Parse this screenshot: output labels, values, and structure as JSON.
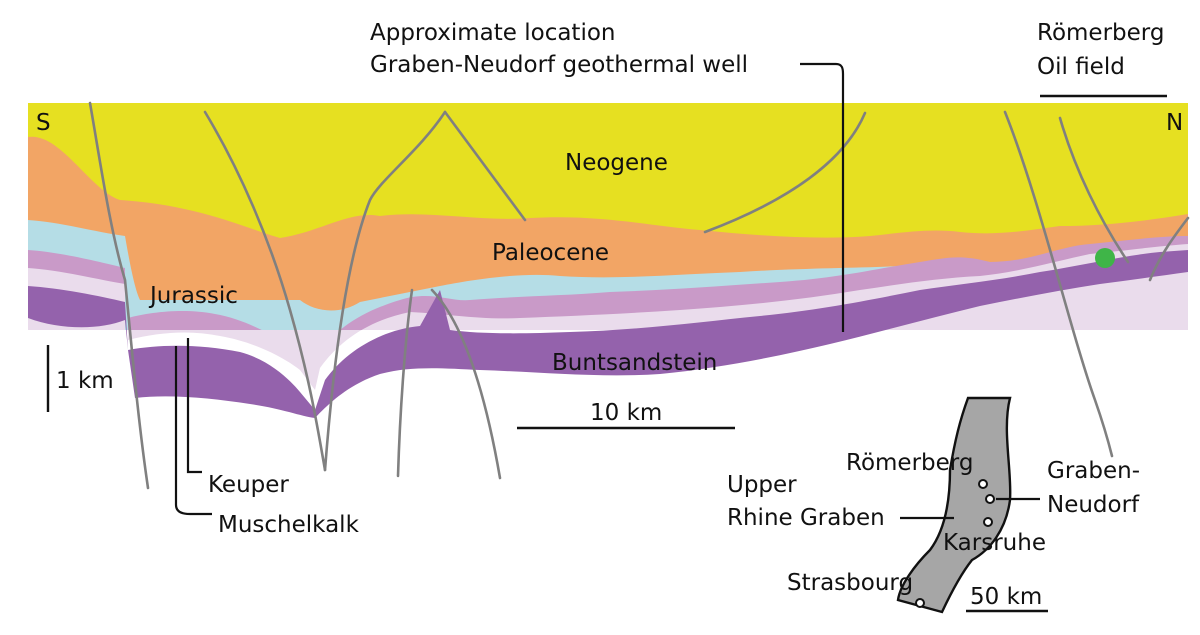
{
  "cross_section": {
    "direction_south": "S",
    "direction_north": "N",
    "units": [
      {
        "name": "Neogene",
        "color": "#e6e021"
      },
      {
        "name": "Paleocene",
        "color": "#f2a565"
      },
      {
        "name": "Jurassic",
        "color": "#b5dde6"
      },
      {
        "name": "Keuper",
        "color": "#c99ac8"
      },
      {
        "name": "Muschelkalk",
        "color": "#eadcec"
      },
      {
        "name": "Buntsandstein",
        "color": "#9462ac"
      }
    ],
    "fault_color": "#808080",
    "oil_field_marker_color": "#3fb548",
    "well_label": {
      "line1": "Approximate location",
      "line2": "Graben-Neudorf geothermal well"
    },
    "oil_field_label": {
      "line1": "Römerberg",
      "line2": "Oil field"
    },
    "vertical_scale": "1 km",
    "horizontal_scale": "10 km"
  },
  "location_map": {
    "graben_color": "#a6a6a6",
    "region_label": {
      "line1": "Upper",
      "line2": "Rhine Graben"
    },
    "places": [
      "Römerberg",
      "Graben-",
      "Neudorf",
      "Karsruhe",
      "Strasbourg"
    ],
    "scale": "50 km"
  }
}
